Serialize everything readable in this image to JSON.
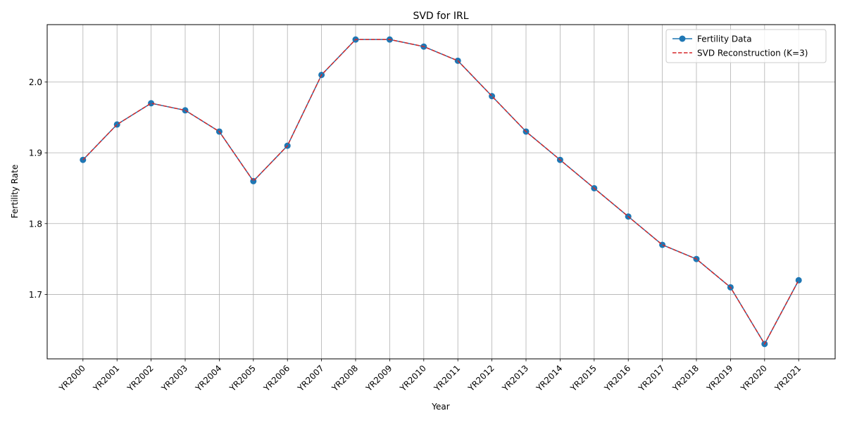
{
  "chart_data": {
    "type": "line",
    "title": "SVD for IRL",
    "xlabel": "Year",
    "ylabel": "Fertility Rate",
    "categories": [
      "YR2000",
      "YR2001",
      "YR2002",
      "YR2003",
      "YR2004",
      "YR2005",
      "YR2006",
      "YR2007",
      "YR2008",
      "YR2009",
      "YR2010",
      "YR2011",
      "YR2012",
      "YR2013",
      "YR2014",
      "YR2015",
      "YR2016",
      "YR2017",
      "YR2018",
      "YR2019",
      "YR2020",
      "YR2021"
    ],
    "ylim": [
      1.609,
      2.081
    ],
    "yticks": [
      1.7,
      1.8,
      1.9,
      2.0
    ],
    "ytick_labels": [
      "1.7",
      "1.8",
      "1.9",
      "2.0"
    ],
    "grid": true,
    "legend_position": "top-right",
    "series": [
      {
        "name": "Fertility Data",
        "color": "#1f77b4",
        "style": "solid",
        "marker": "circle",
        "values": [
          1.89,
          1.94,
          1.97,
          1.96,
          1.93,
          1.86,
          1.91,
          2.01,
          2.06,
          2.06,
          2.05,
          2.03,
          1.98,
          1.93,
          1.89,
          1.85,
          1.81,
          1.77,
          1.75,
          1.71,
          1.63,
          1.72
        ]
      },
      {
        "name": "SVD Reconstruction (K=3)",
        "color": "#d62728",
        "style": "dashed",
        "marker": "none",
        "values": [
          1.89,
          1.94,
          1.97,
          1.96,
          1.93,
          1.86,
          1.91,
          2.01,
          2.06,
          2.06,
          2.05,
          2.03,
          1.98,
          1.93,
          1.89,
          1.85,
          1.81,
          1.77,
          1.75,
          1.71,
          1.63,
          1.72
        ]
      }
    ]
  }
}
